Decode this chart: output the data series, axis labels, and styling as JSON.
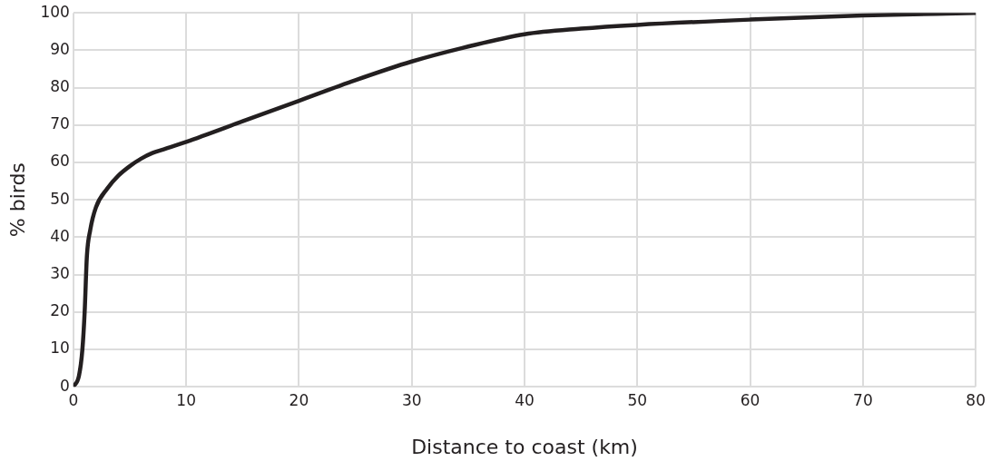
{
  "chart_data": {
    "type": "line",
    "xlabel": "Distance to coast (km)",
    "ylabel": "% birds",
    "series": [
      {
        "color": "#231f20",
        "x": [
          0,
          0.5,
          0.8,
          1,
          1.2,
          1.5,
          2,
          3,
          4,
          5,
          6,
          7,
          8,
          10,
          15,
          20,
          25,
          30,
          35,
          40,
          45,
          50,
          60,
          70,
          80
        ],
        "values": [
          0,
          3,
          10,
          20,
          35,
          42,
          48,
          53,
          56.5,
          59,
          61,
          62.5,
          63.5,
          65.5,
          71,
          76.5,
          82,
          87,
          91,
          94.3,
          95.8,
          96.8,
          98.2,
          99.3,
          100
        ]
      }
    ],
    "xlim": [
      0,
      80
    ],
    "xticks": [
      0,
      10,
      20,
      30,
      40,
      50,
      60,
      70,
      80
    ],
    "ylim": [
      0,
      100
    ],
    "yticks": [
      0,
      10,
      20,
      30,
      40,
      50,
      60,
      70,
      80,
      90,
      100
    ],
    "grid": true,
    "legend": false,
    "marker": "none",
    "line_style": "solid"
  }
}
